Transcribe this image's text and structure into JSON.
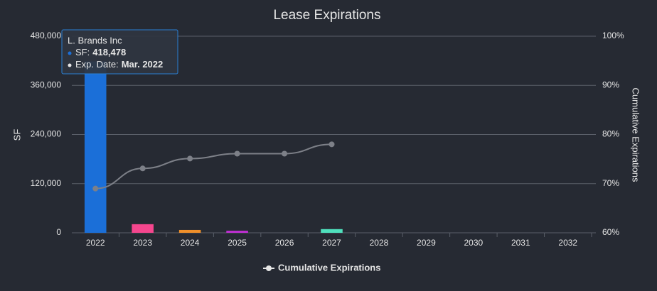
{
  "chart_data": {
    "type": "bar",
    "title": "Lease Expirations",
    "y_label": "SF",
    "y2_label": "Cumulative Expirations",
    "categories": [
      "2022",
      "2023",
      "2024",
      "2025",
      "2026",
      "2027",
      "2028",
      "2029",
      "2030",
      "2031",
      "2032"
    ],
    "bars": {
      "values": [
        418478,
        21000,
        7000,
        5000,
        null,
        9000,
        null,
        null,
        null,
        null,
        null
      ],
      "colors": [
        "#1b6fd8",
        "#f5468e",
        "#ef8f2a",
        "#c12fd4",
        "#888888",
        "#4fe0bd",
        "#888888",
        "#888888",
        "#888888",
        "#888888",
        "#888888"
      ]
    },
    "series": [
      {
        "name": "Cumulative Expirations",
        "color": "#7d8088",
        "axis": "y2",
        "values": [
          69,
          73.1,
          75.1,
          76.1,
          76.1,
          78,
          null,
          null,
          null,
          null,
          null
        ]
      }
    ],
    "ylim": [
      0,
      480000
    ],
    "yticks": [
      0,
      {
        "value": 120000,
        "label": "120,000"
      },
      {
        "value": 240000,
        "label": "240,000"
      },
      {
        "value": 360000,
        "label": "360,000"
      },
      {
        "value": 480000,
        "label": "480,000"
      }
    ],
    "y2lim": [
      60,
      100
    ],
    "y2ticks": [
      {
        "value": 60,
        "label": "60%"
      },
      {
        "value": 70,
        "label": "70%"
      },
      {
        "value": 80,
        "label": "80%"
      },
      {
        "value": 90,
        "label": "90%"
      },
      {
        "value": 100,
        "label": "100%"
      }
    ],
    "grid": true,
    "legend": "bottom",
    "tooltip": {
      "name": "L. Brands Inc",
      "sf_label": "SF:",
      "sf_value": "418,478",
      "date_label": "Exp. Date:",
      "date_value": "Mar. 2022"
    }
  }
}
